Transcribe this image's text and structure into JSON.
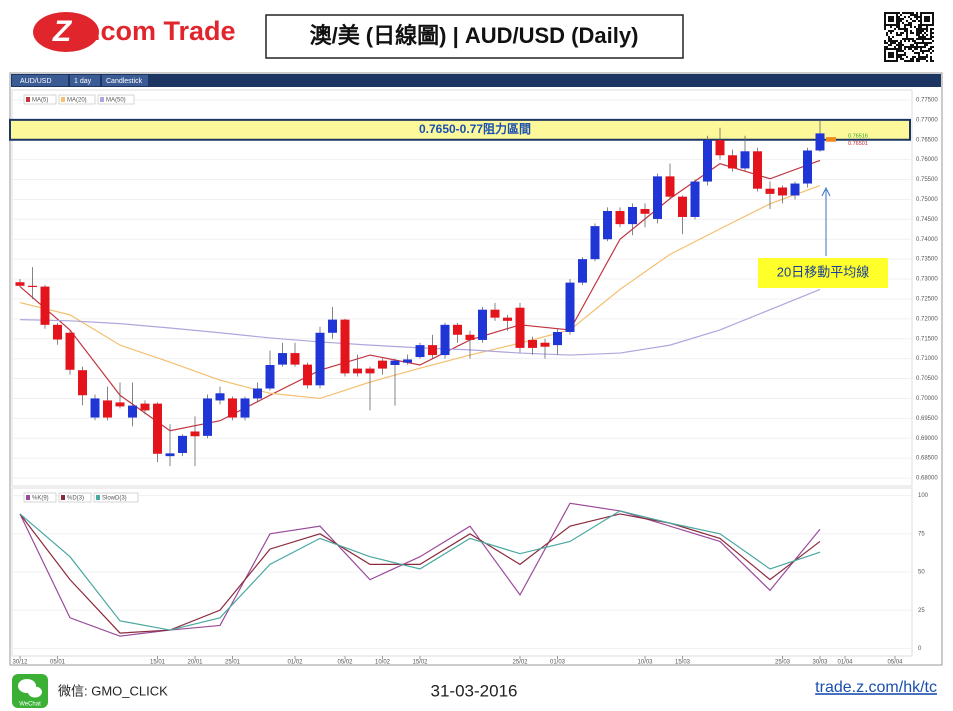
{
  "header": {
    "logo_mark": "Z",
    "logo_text": ".com Trade",
    "title": "澳/美 (日線圖) | AUD/USD (Daily)"
  },
  "toolbar": {
    "tabs": [
      "AUD/USD",
      "1 day",
      "Candlestick"
    ]
  },
  "footer": {
    "wechat_icon": "WeChat",
    "wechat": "微信: GMO_CLICK",
    "date": "31-03-2016",
    "link": "trade.z.com/hk/tc"
  },
  "chart_data": [
    {
      "type": "candlestick",
      "categories": [
        "30/12",
        null,
        null,
        "05/01",
        null,
        null,
        null,
        null,
        null,
        null,
        null,
        "15/01",
        null,
        null,
        "20/01",
        null,
        null,
        "25/01",
        null,
        null,
        null,
        null,
        "01/02",
        null,
        null,
        null,
        "05/02",
        null,
        null,
        "10/02",
        null,
        null,
        "15/02",
        null,
        null,
        null,
        null,
        null,
        null,
        null,
        "25/02",
        null,
        null,
        "01/03",
        null,
        null,
        null,
        null,
        null,
        null,
        "10/03",
        null,
        null,
        "15/03",
        null,
        null,
        null,
        null,
        null,
        null,
        null,
        "25/03",
        null,
        null,
        "30/03",
        null,
        "01/04",
        null,
        null,
        null,
        "05/04"
      ],
      "open": [
        0.7292,
        0.7283,
        0.7281,
        0.7185,
        0.7165,
        0.7071,
        0.6952,
        0.6995,
        0.699,
        0.6952,
        0.6987,
        0.6987,
        0.6855,
        0.6863,
        0.6917,
        0.6906,
        0.6995,
        0.7,
        0.6952,
        0.7,
        0.7025,
        0.7085,
        0.7114,
        0.7085,
        0.7033,
        0.7165,
        0.7198,
        0.7075,
        0.7075,
        0.7095,
        0.7084,
        0.709,
        0.7104,
        0.7134,
        0.7109,
        0.7185,
        0.716,
        0.7147,
        0.7223,
        0.7203,
        0.7228,
        0.7147,
        0.714,
        0.7134,
        0.7167,
        0.7291,
        0.735,
        0.74,
        0.7471,
        0.7438,
        0.7476,
        0.7451,
        0.7558,
        0.7507,
        0.7456,
        0.7545,
        0.7649,
        0.7611,
        0.7578,
        0.7621,
        0.7527,
        0.753,
        0.751,
        0.754,
        0.7623,
        null,
        null,
        null,
        null,
        null,
        null
      ],
      "high": [
        0.73,
        0.733,
        0.7285,
        0.719,
        0.717,
        0.708,
        0.701,
        0.703,
        0.704,
        0.704,
        0.6995,
        0.699,
        0.6935,
        0.691,
        0.6955,
        0.701,
        0.703,
        0.7005,
        0.7005,
        0.704,
        0.712,
        0.714,
        0.714,
        0.709,
        0.718,
        0.723,
        0.72,
        0.711,
        0.708,
        0.71,
        0.71,
        0.711,
        0.714,
        0.716,
        0.719,
        0.719,
        0.717,
        0.723,
        0.724,
        0.721,
        0.724,
        0.7155,
        0.715,
        0.7175,
        0.73,
        0.7355,
        0.744,
        0.748,
        0.748,
        0.749,
        0.749,
        0.7565,
        0.759,
        0.751,
        0.755,
        0.766,
        0.768,
        0.7625,
        0.766,
        0.763,
        0.7545,
        0.7535,
        0.7545,
        0.763,
        0.77,
        null,
        null,
        null,
        null,
        null,
        null
      ],
      "low": [
        0.728,
        0.725,
        0.7175,
        0.7135,
        0.706,
        0.6983,
        0.6945,
        0.6945,
        0.6975,
        0.693,
        0.696,
        0.684,
        0.683,
        0.6855,
        0.683,
        0.69,
        0.6985,
        0.6945,
        0.6945,
        0.699,
        0.702,
        0.708,
        0.708,
        0.7025,
        0.7025,
        0.715,
        0.7055,
        0.7055,
        0.697,
        0.706,
        0.6982,
        0.7085,
        0.71,
        0.71,
        0.71,
        0.714,
        0.71,
        0.714,
        0.7195,
        0.717,
        0.7115,
        0.711,
        0.71,
        0.711,
        0.716,
        0.7285,
        0.7345,
        0.7395,
        0.743,
        0.741,
        0.743,
        0.744,
        0.75,
        0.7413,
        0.745,
        0.7535,
        0.76,
        0.757,
        0.757,
        0.752,
        0.7476,
        0.749,
        0.75,
        0.753,
        0.762,
        null,
        null,
        null,
        null,
        null,
        null
      ],
      "close": [
        0.7283,
        0.728,
        0.7185,
        0.7148,
        0.7072,
        0.7008,
        0.7,
        0.6952,
        0.698,
        0.6982,
        0.697,
        0.6861,
        0.6862,
        0.6906,
        0.6905,
        0.7,
        0.7013,
        0.6952,
        0.7,
        0.7025,
        0.7084,
        0.7114,
        0.7085,
        0.7033,
        0.7165,
        0.7198,
        0.7063,
        0.7063,
        0.7063,
        0.7075,
        0.7095,
        0.7098,
        0.7134,
        0.7109,
        0.7185,
        0.716,
        0.7147,
        0.7223,
        0.7203,
        0.7195,
        0.7127,
        0.7127,
        0.713,
        0.7167,
        0.7291,
        0.735,
        0.7433,
        0.7471,
        0.7438,
        0.7481,
        0.7464,
        0.7558,
        0.7507,
        0.7456,
        0.7545,
        0.7649,
        0.7611,
        0.7578,
        0.7621,
        0.7527,
        0.7514,
        0.751,
        0.754,
        0.7623,
        0.7666,
        null,
        null,
        null,
        null,
        null,
        null
      ],
      "up_color": "#1f35d6",
      "down_color": "#e3141b",
      "series": [
        {
          "name": "MA(5)",
          "color": "#c23440",
          "x": [
            0,
            4,
            8,
            12,
            16,
            20,
            24,
            28,
            32,
            36,
            40,
            44,
            48,
            52,
            56,
            60,
            64
          ],
          "values": [
            0.7281,
            0.7172,
            0.7008,
            0.6919,
            0.6944,
            0.7008,
            0.7071,
            0.7109,
            0.7084,
            0.7147,
            0.7185,
            0.7172,
            0.74,
            0.7502,
            0.759,
            0.7552,
            0.7598
          ]
        },
        {
          "name": "MA(20)",
          "color": "#f4c070",
          "x": [
            0,
            4,
            8,
            12,
            16,
            20,
            24,
            28,
            32,
            36,
            40,
            44,
            48,
            52,
            56,
            60,
            64
          ],
          "values": [
            0.7241,
            0.721,
            0.7134,
            0.7091,
            0.7046,
            0.7013,
            0.7,
            0.7041,
            0.7076,
            0.7109,
            0.7139,
            0.7172,
            0.7274,
            0.7362,
            0.7426,
            0.7489,
            0.7535
          ]
        },
        {
          "name": "MA(50)",
          "color": "#aea6de",
          "x": [
            0,
            4,
            8,
            12,
            16,
            20,
            24,
            28,
            32,
            36,
            40,
            44,
            48,
            52,
            56,
            60,
            64
          ],
          "values": [
            0.7198,
            0.7195,
            0.7188,
            0.7177,
            0.7165,
            0.7152,
            0.7142,
            0.7134,
            0.7127,
            0.7122,
            0.7114,
            0.7109,
            0.7114,
            0.7134,
            0.7172,
            0.7223,
            0.7274
          ]
        }
      ],
      "ylim": [
        0.678,
        0.7775
      ],
      "yticks": [
        {
          "value": 0.775,
          "label": "0.77500"
        },
        {
          "value": 0.77,
          "label": "0.77000"
        },
        {
          "value": 0.765,
          "label": "0.76500"
        },
        {
          "value": 0.76,
          "label": "0.76000"
        },
        {
          "value": 0.755,
          "label": "0.75500"
        },
        {
          "value": 0.75,
          "label": "0.75000"
        },
        {
          "value": 0.745,
          "label": "0.74500"
        },
        {
          "value": 0.74,
          "label": "0.74000"
        },
        {
          "value": 0.735,
          "label": "0.73500"
        },
        {
          "value": 0.73,
          "label": "0.73000"
        },
        {
          "value": 0.725,
          "label": "0.72500"
        },
        {
          "value": 0.72,
          "label": "0.72000"
        },
        {
          "value": 0.715,
          "label": "0.71500"
        },
        {
          "value": 0.71,
          "label": "0.71000"
        },
        {
          "value": 0.705,
          "label": "0.70500"
        },
        {
          "value": 0.7,
          "label": "0.70000"
        },
        {
          "value": 0.695,
          "label": "0.69500"
        },
        {
          "value": 0.69,
          "label": "0.69000"
        },
        {
          "value": 0.685,
          "label": "0.68500"
        },
        {
          "value": 0.68,
          "label": "0.68000"
        }
      ],
      "grid": true,
      "resistance_band": {
        "label": "0.7650-0.77阻力區間",
        "range": [
          0.765,
          0.77
        ]
      },
      "annotation": "20日移動平均線",
      "price_labels": [
        {
          "value": 0.76516,
          "color": "#2e9a2e"
        },
        {
          "value": 0.76501,
          "color": "#c0262e"
        }
      ]
    },
    {
      "type": "line",
      "series": [
        {
          "name": "%K(9)",
          "color": "#9a4c9a",
          "x": [
            0,
            4,
            8,
            12,
            16,
            20,
            24,
            28,
            32,
            36,
            40,
            44,
            48,
            52,
            56,
            60,
            64
          ],
          "values": [
            88,
            20,
            8,
            12,
            15,
            75,
            80,
            45,
            60,
            80,
            35,
            95,
            90,
            80,
            70,
            38,
            78
          ]
        },
        {
          "name": "%D(3)",
          "color": "#8b2a3c",
          "x": [
            0,
            4,
            8,
            12,
            16,
            20,
            24,
            28,
            32,
            36,
            40,
            44,
            48,
            52,
            56,
            60,
            64
          ],
          "values": [
            88,
            45,
            10,
            12,
            25,
            65,
            75,
            55,
            55,
            75,
            55,
            80,
            88,
            82,
            72,
            45,
            70
          ]
        },
        {
          "name": "SlowD(3)",
          "color": "#4aa8a0",
          "x": [
            0,
            4,
            8,
            12,
            16,
            20,
            24,
            28,
            32,
            36,
            40,
            44,
            48,
            52,
            56,
            60,
            64
          ],
          "values": [
            88,
            60,
            18,
            12,
            20,
            55,
            72,
            60,
            52,
            72,
            62,
            70,
            90,
            82,
            75,
            52,
            63
          ]
        }
      ],
      "ylim": [
        -5,
        105
      ],
      "yticks": [
        0,
        25,
        50,
        75,
        100
      ],
      "grid": true
    }
  ]
}
